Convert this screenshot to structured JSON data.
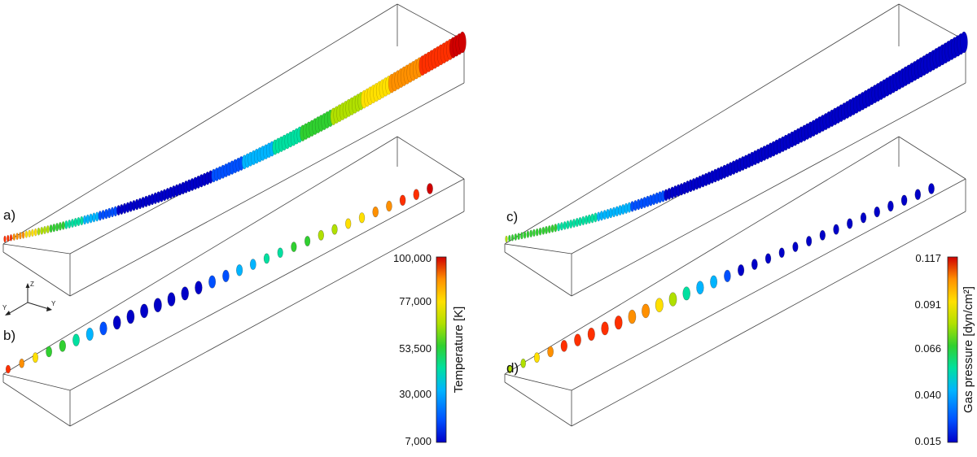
{
  "panels": [
    {
      "id": "a",
      "label": "a)"
    },
    {
      "id": "b",
      "label": "b)"
    },
    {
      "id": "c",
      "label": "c)"
    },
    {
      "id": "d",
      "label": "d)"
    }
  ],
  "axes_triad": {
    "labels": [
      "Y",
      "Z",
      "Y"
    ]
  },
  "colorbars": [
    {
      "id": "temperature",
      "title": "Temperature [K]",
      "ticks": [
        "100,000",
        "77,000",
        "53,500",
        "30,000",
        "7,000"
      ]
    },
    {
      "id": "pressure",
      "title": "Gas pressure [dyn/cm²]",
      "ticks": [
        "0.117",
        "0.091",
        "0.066",
        "0.040",
        "0.015"
      ]
    }
  ],
  "colors": {
    "colormap": [
      "#0000c8",
      "#0050ff",
      "#00b4ff",
      "#00e0a0",
      "#30d030",
      "#b0e000",
      "#ffe000",
      "#ff9000",
      "#ff3000",
      "#d00000"
    ]
  }
}
